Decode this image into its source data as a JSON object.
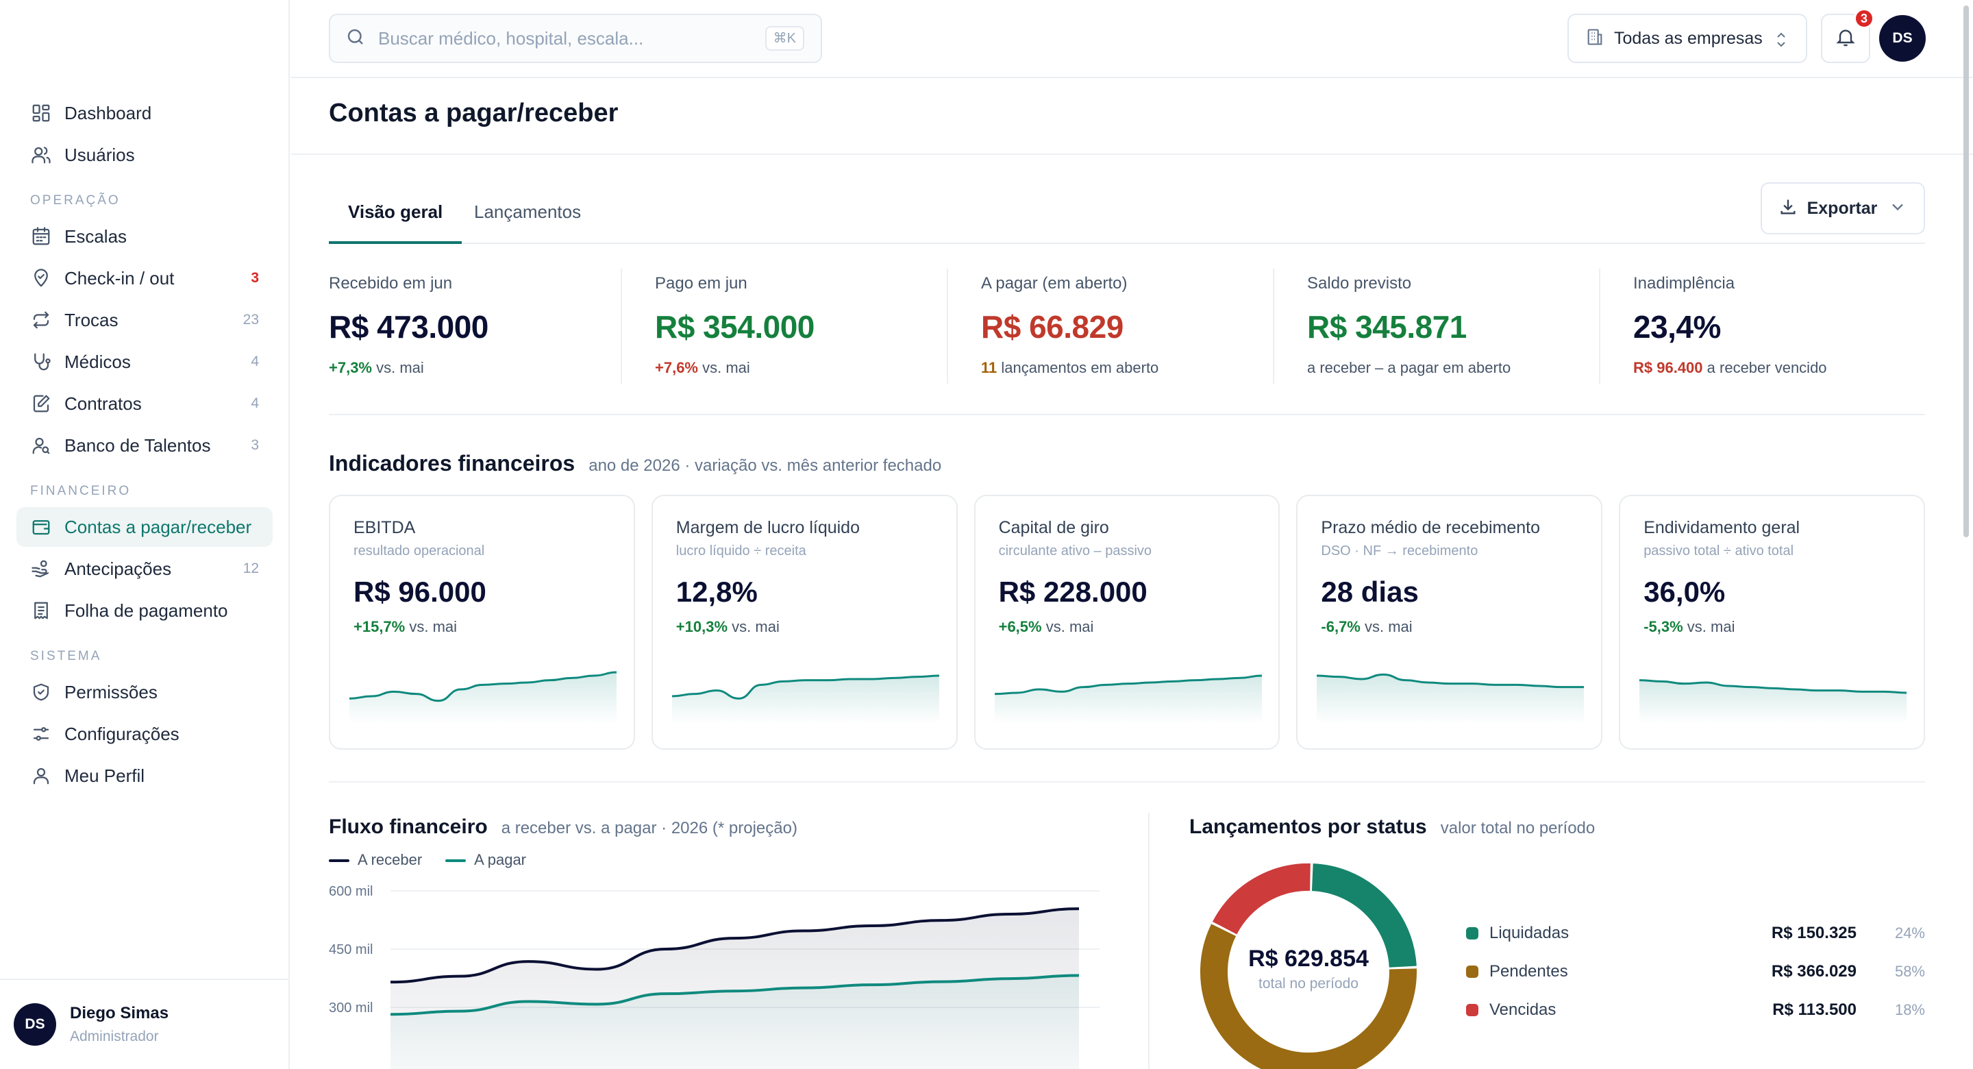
{
  "sidebar": {
    "main_items": [
      {
        "label": "Dashboard",
        "icon": "dashboard-icon"
      },
      {
        "label": "Usuários",
        "icon": "users-icon"
      }
    ],
    "sections": [
      {
        "title": "OPERAÇÃO",
        "items": [
          {
            "label": "Escalas",
            "count": "",
            "icon": "calendar-icon"
          },
          {
            "label": "Check-in / out",
            "count": "3",
            "icon": "map-pin-icon"
          },
          {
            "label": "Trocas",
            "count": "23",
            "icon": "swap-icon"
          },
          {
            "label": "Médicos",
            "count": "4",
            "icon": "stethoscope-icon"
          },
          {
            "label": "Contratos",
            "count": "4",
            "icon": "contract-icon"
          },
          {
            "label": "Banco de Talentos",
            "count": "3",
            "icon": "user-search-icon"
          }
        ]
      },
      {
        "title": "FINANCEIRO",
        "items": [
          {
            "label": "Contas a pagar/receber",
            "count": "",
            "icon": "wallet-icon"
          },
          {
            "label": "Antecipações",
            "count": "12",
            "icon": "hand-coins-icon"
          },
          {
            "label": "Folha de pagamento",
            "count": "",
            "icon": "receipt-icon"
          }
        ]
      },
      {
        "title": "SISTEMA",
        "items": [
          {
            "label": "Permissões",
            "count": "",
            "icon": "shield-check-icon"
          },
          {
            "label": "Configurações",
            "count": "",
            "icon": "settings-sliders-icon"
          },
          {
            "label": "Meu Perfil",
            "count": "",
            "icon": "user-icon"
          }
        ]
      }
    ],
    "user": {
      "initials": "DS",
      "name": "Diego Simas",
      "role": "Administrador"
    }
  },
  "topbar": {
    "search_placeholder": "Buscar médico, hospital, escala...",
    "shortcut": "⌘K",
    "company_select": "Todas as empresas",
    "notifications": "3",
    "avatar": "DS"
  },
  "page": {
    "title": "Contas a pagar/receber",
    "tabs": [
      "Visão geral",
      "Lançamentos"
    ],
    "export_label": "Exportar"
  },
  "kpis": [
    {
      "label": "Recebido em jun",
      "value": "R$ 473.000",
      "delta": "+7,3%",
      "note": "vs. mai"
    },
    {
      "label": "Pago em jun",
      "value": "R$ 354.000",
      "delta": "+7,6%",
      "note": "vs. mai"
    },
    {
      "label": "A pagar (em aberto)",
      "value": "R$ 66.829",
      "delta": "11",
      "note": "lançamentos em aberto"
    },
    {
      "label": "Saldo previsto",
      "value": "R$ 345.871",
      "delta": "",
      "note": "a receber – a pagar em aberto"
    },
    {
      "label": "Inadimplência",
      "value": "23,4%",
      "delta": "R$ 96.400",
      "note": "a receber vencido"
    }
  ],
  "indicators": {
    "title": "Indicadores financeiros",
    "subtitle": "ano de 2026 · variação vs. mês anterior fechado",
    "cards": [
      {
        "label": "EBITDA",
        "desc": "resultado operacional",
        "value": "R$ 96.000",
        "delta": "+15,7%",
        "note": "vs. mai",
        "trend": [
          62,
          64,
          68,
          66,
          60,
          70,
          74,
          75,
          76,
          78,
          80,
          82,
          85
        ]
      },
      {
        "label": "Margem de lucro líquido",
        "desc": "lucro líquido ÷ receita",
        "value": "12,8%",
        "delta": "+10,3%",
        "note": "vs. mai",
        "trend": [
          64,
          66,
          69,
          62,
          74,
          77,
          78,
          78,
          79,
          79,
          80,
          81,
          82
        ]
      },
      {
        "label": "Capital de giro",
        "desc": "circulante ativo – passivo",
        "value": "R$ 228.000",
        "delta": "+6,5%",
        "note": "vs. mai",
        "trend": [
          66,
          67,
          70,
          68,
          72,
          74,
          75,
          76,
          77,
          78,
          79,
          80,
          82
        ]
      },
      {
        "label": "Prazo médio de recebimento",
        "desc": "DSO · NF → recebimento",
        "value": "28 dias",
        "delta": "-6,7%",
        "note": "vs. mai",
        "trend": [
          82,
          81,
          79,
          83,
          78,
          76,
          75,
          75,
          74,
          74,
          73,
          72,
          72
        ]
      },
      {
        "label": "Endividamento geral",
        "desc": "passivo total ÷ ativo total",
        "value": "36,0%",
        "delta": "-5,3%",
        "note": "vs. mai",
        "trend": [
          78,
          77,
          75,
          76,
          73,
          72,
          71,
          70,
          69,
          69,
          68,
          68,
          67
        ]
      }
    ]
  },
  "chart_data": [
    {
      "type": "area",
      "title": "Fluxo financeiro",
      "subtitle": "a receber vs. a pagar · 2026 (* projeção)",
      "ylim": [
        150000,
        600000
      ],
      "yticks": [
        "600 mil",
        "450 mil",
        "300 mil"
      ],
      "series": [
        {
          "name": "A receber",
          "color": "#0b1033",
          "values": [
            365000,
            380000,
            418000,
            398000,
            450000,
            478000,
            497000,
            510000,
            524000,
            540000,
            554000
          ]
        },
        {
          "name": "A pagar",
          "color": "#0f8a7e",
          "values": [
            282000,
            290000,
            315000,
            308000,
            335000,
            342000,
            350000,
            358000,
            366000,
            374000,
            382000
          ]
        }
      ]
    },
    {
      "type": "pie",
      "title": "Lançamentos por status",
      "subtitle": "valor total no período",
      "total": "R$ 629.854",
      "total_label": "total no período",
      "slices": [
        {
          "name": "Liquidadas",
          "value": 150325,
          "amount": "R$ 150.325",
          "pct": "24%",
          "color": "#15846a"
        },
        {
          "name": "Pendentes",
          "value": 366029,
          "amount": "R$ 366.029",
          "pct": "58%",
          "color": "#9a6b12"
        },
        {
          "name": "Vencidas",
          "value": 113500,
          "amount": "R$ 113.500",
          "pct": "18%",
          "color": "#cd3b3b"
        }
      ]
    }
  ]
}
